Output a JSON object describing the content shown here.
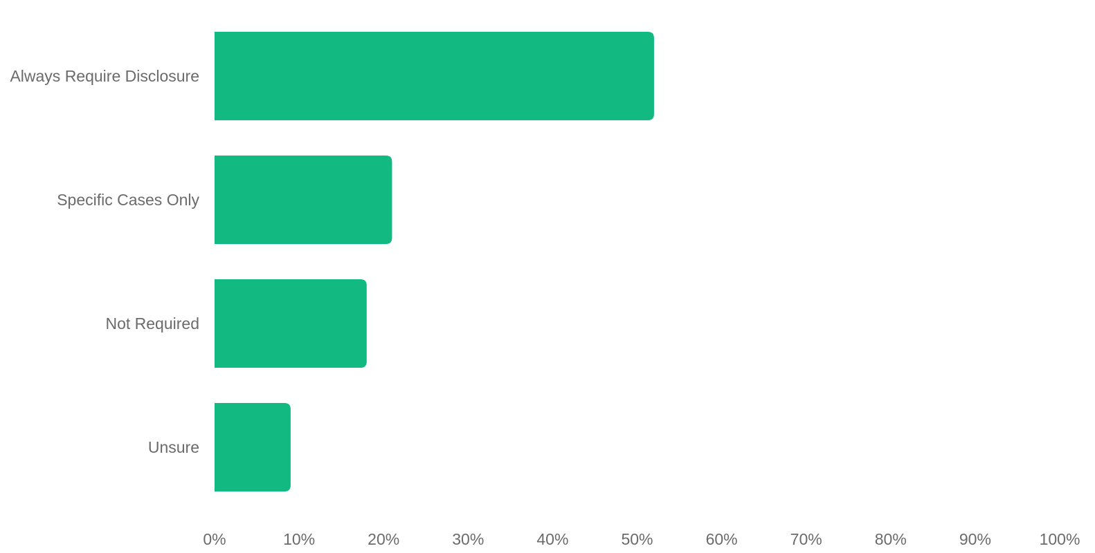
{
  "colors": {
    "bar": "#12b981",
    "text": "#6b6b6b",
    "background": "#ffffff"
  },
  "chart_data": {
    "type": "bar",
    "orientation": "horizontal",
    "categories": [
      "Always Require Disclosure",
      "Specific Cases Only",
      "Not Required",
      "Unsure"
    ],
    "values": [
      52,
      21,
      18,
      9
    ],
    "unit": "%",
    "xlim": [
      0,
      100
    ],
    "x_ticks": [
      "0%",
      "10%",
      "20%",
      "30%",
      "40%",
      "50%",
      "60%",
      "70%",
      "80%",
      "90%",
      "100%"
    ],
    "grid": false,
    "legend": "none",
    "title": "",
    "xlabel": "",
    "ylabel": ""
  }
}
